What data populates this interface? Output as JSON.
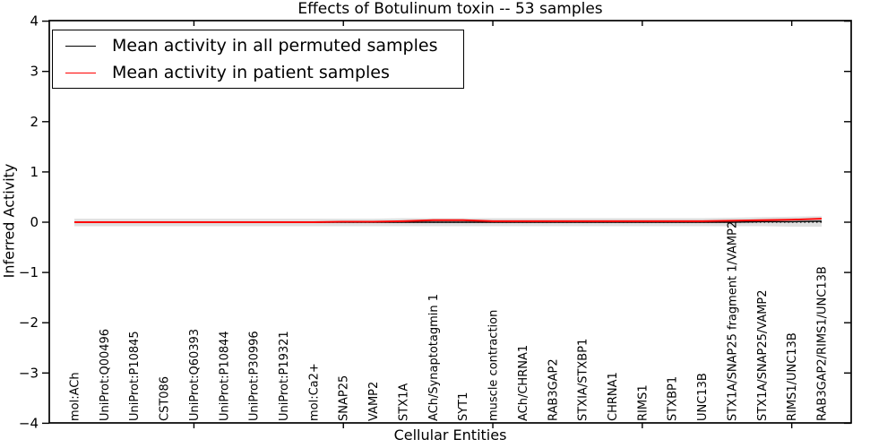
{
  "chart_data": {
    "type": "line",
    "title": "Effects of Botulinum toxin -- 53 samples",
    "xlabel": "Cellular Entities",
    "ylabel": "Inferred Activity",
    "ylim": [
      -4,
      4
    ],
    "yticks": [
      4,
      3,
      2,
      1,
      0,
      -1,
      -2,
      -3,
      -4
    ],
    "x_major_tick_indices": [
      4,
      9,
      14,
      19,
      24
    ],
    "grid": false,
    "legend_position": "upper-left",
    "categories": [
      "mol:ACh",
      "UniProt:Q00496",
      "UniProt:P10845",
      "CST086",
      "UniProt:Q60393",
      "UniProt:P10844",
      "UniProt:P30996",
      "UniProt:P19321",
      "mol:Ca2+",
      "SNAP25",
      "VAMP2",
      "STX1A",
      "ACh/Synaptotagmin 1",
      "SYT1",
      "muscle contraction",
      "ACh/CHRNA1",
      "RAB3GAP2",
      "STXIA/STXBP1",
      "CHRNA1",
      "RIMS1",
      "STXBP1",
      "UNC13B",
      "STX1A/SNAP25 fragment 1/VAMP2",
      "STX1A/SNAP25/VAMP2",
      "RIMS1/UNC13B",
      "RAB3GAP2/RIMS1/UNC13B"
    ],
    "series": [
      {
        "name": "Mean activity in all permuted samples",
        "color": "#000000",
        "values": [
          0,
          0,
          0,
          0,
          0,
          0,
          0,
          0,
          0,
          0,
          0,
          0,
          0,
          0,
          0,
          0,
          0,
          0,
          0,
          0,
          0,
          0,
          0,
          0.01,
          0.01,
          0.02
        ]
      },
      {
        "name": "Mean activity in patient samples",
        "color": "#ff0000",
        "values": [
          0,
          0,
          0,
          0,
          0,
          0,
          0,
          0,
          0,
          0.01,
          0.01,
          0.02,
          0.04,
          0.04,
          0.02,
          0.02,
          0.02,
          0.02,
          0.02,
          0.02,
          0.02,
          0.02,
          0.03,
          0.04,
          0.05,
          0.07
        ]
      }
    ],
    "zero_line": {
      "y": 0,
      "style": "dotted",
      "color": "#111111"
    },
    "band": {
      "color": "#d7d7d7",
      "upper": [
        0.07,
        0.07,
        0.07,
        0.07,
        0.07,
        0.07,
        0.07,
        0.07,
        0.07,
        0.07,
        0.07,
        0.08,
        0.08,
        0.08,
        0.08,
        0.08,
        0.08,
        0.08,
        0.08,
        0.08,
        0.08,
        0.08,
        0.09,
        0.1,
        0.11,
        0.12
      ],
      "lower": [
        -0.08,
        -0.08,
        -0.08,
        -0.08,
        -0.08,
        -0.08,
        -0.08,
        -0.08,
        -0.08,
        -0.08,
        -0.08,
        -0.08,
        -0.08,
        -0.08,
        -0.08,
        -0.08,
        -0.08,
        -0.08,
        -0.08,
        -0.08,
        -0.08,
        -0.08,
        -0.08,
        -0.08,
        -0.09,
        -0.09
      ]
    }
  }
}
